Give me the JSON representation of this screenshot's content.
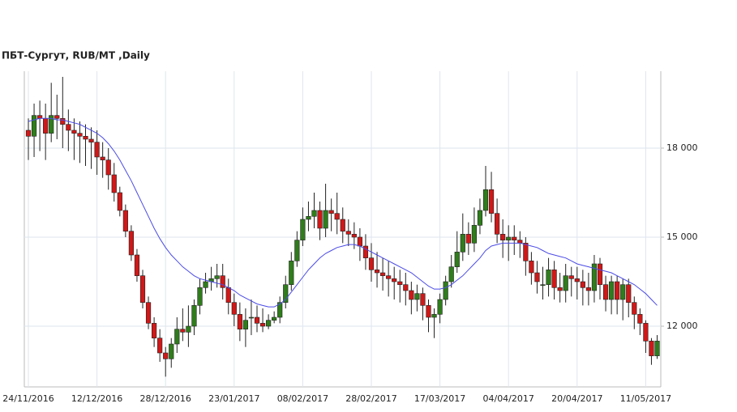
{
  "chart_data": {
    "type": "candlestick",
    "title": "ПБТ-Сургут,  RUB/MT ,Daily",
    "categories": [
      "24/11/2016",
      null,
      null,
      null,
      null,
      null,
      null,
      null,
      null,
      null,
      null,
      null,
      "12/12/2016",
      null,
      null,
      null,
      null,
      null,
      null,
      null,
      null,
      null,
      null,
      null,
      "28/12/2016",
      null,
      null,
      null,
      null,
      null,
      null,
      null,
      null,
      null,
      null,
      null,
      "23/01/2017",
      null,
      null,
      null,
      null,
      null,
      null,
      null,
      null,
      null,
      null,
      null,
      "08/02/2017",
      null,
      null,
      null,
      null,
      null,
      null,
      null,
      null,
      null,
      null,
      null,
      "28/02/2017",
      null,
      null,
      null,
      null,
      null,
      null,
      null,
      null,
      null,
      null,
      null,
      "17/03/2017",
      null,
      null,
      null,
      null,
      null,
      null,
      null,
      null,
      null,
      null,
      null,
      "04/04/2017",
      null,
      null,
      null,
      null,
      null,
      null,
      null,
      null,
      null,
      null,
      null,
      "20/04/2017",
      null,
      null,
      null,
      null,
      null,
      null,
      null,
      null,
      null,
      null,
      null,
      "11/05/2017",
      null,
      null
    ],
    "open": [
      18600,
      18400,
      19100,
      19000,
      18500,
      19100,
      19000,
      18800,
      18600,
      18500,
      18400,
      18300,
      18200,
      17700,
      17600,
      17100,
      16500,
      15900,
      15200,
      14400,
      13700,
      12800,
      12100,
      11600,
      11100,
      10900,
      11400,
      11900,
      11800,
      12000,
      12700,
      13300,
      13500,
      13600,
      13700,
      13300,
      12800,
      12400,
      11900,
      12300,
      12300,
      12100,
      12000,
      12200,
      12300,
      12800,
      13400,
      14200,
      14900,
      15600,
      15700,
      15900,
      15300,
      15900,
      15800,
      15600,
      15200,
      15100,
      15000,
      14700,
      14300,
      13900,
      13800,
      13700,
      13600,
      13500,
      13400,
      13200,
      12900,
      13100,
      12700,
      12300,
      12400,
      12900,
      13500,
      14000,
      14500,
      15100,
      14800,
      15400,
      15900,
      16600,
      15800,
      15100,
      14900,
      15000,
      14900,
      14800,
      14200,
      13800,
      13400,
      13400,
      13900,
      13300,
      13200,
      13700,
      13600,
      13500,
      13300,
      13200,
      14100,
      13400,
      12900,
      13500,
      12900,
      13400,
      12800,
      12400,
      12100,
      11500,
      11000
    ],
    "high": [
      19000,
      19500,
      19600,
      19500,
      20200,
      19800,
      20400,
      19300,
      19000,
      18900,
      18800,
      18700,
      18600,
      18200,
      18000,
      17500,
      16700,
      16100,
      15400,
      14600,
      13900,
      13000,
      12300,
      11900,
      11300,
      11600,
      12300,
      12600,
      12700,
      12900,
      13600,
      13800,
      14000,
      14100,
      14100,
      13600,
      13100,
      12800,
      12600,
      12900,
      12700,
      12600,
      12400,
      12500,
      13000,
      13700,
      14500,
      15200,
      16000,
      16200,
      16500,
      16200,
      16800,
      16300,
      16500,
      16000,
      15600,
      15500,
      15300,
      15100,
      14800,
      14500,
      14300,
      14200,
      14000,
      13900,
      13800,
      13500,
      13400,
      13300,
      12900,
      12600,
      13100,
      13700,
      14400,
      15200,
      15800,
      15500,
      16000,
      16300,
      17400,
      17200,
      16300,
      15600,
      15400,
      15400,
      15200,
      15000,
      14500,
      14200,
      14000,
      14300,
      14200,
      13800,
      14100,
      14000,
      14000,
      13900,
      13800,
      14400,
      14300,
      13700,
      13700,
      13700,
      13600,
      13600,
      13000,
      12600,
      12200,
      11600,
      11700
    ],
    "low": [
      17600,
      17700,
      17900,
      17600,
      18200,
      18300,
      18000,
      17900,
      17600,
      17500,
      17400,
      17300,
      17100,
      17000,
      16600,
      16200,
      15700,
      15000,
      14200,
      13500,
      12600,
      11900,
      11300,
      10800,
      10300,
      10600,
      11100,
      11500,
      11300,
      11700,
      12400,
      13100,
      13200,
      13300,
      12900,
      12400,
      12000,
      11500,
      11300,
      11700,
      11800,
      11800,
      11900,
      12100,
      12100,
      12600,
      13200,
      14000,
      14700,
      15200,
      15300,
      14900,
      15000,
      15200,
      15100,
      14800,
      14700,
      14600,
      14200,
      13900,
      13500,
      13300,
      13200,
      13000,
      12900,
      12800,
      12700,
      12400,
      12500,
      12200,
      11800,
      11600,
      12100,
      12700,
      13300,
      13800,
      14200,
      14400,
      14500,
      15100,
      15700,
      15500,
      14800,
      14300,
      14200,
      14400,
      14300,
      13700,
      13400,
      13100,
      12900,
      13000,
      12900,
      12800,
      12800,
      13000,
      12900,
      12700,
      12700,
      12800,
      12900,
      12500,
      12400,
      12400,
      12200,
      12300,
      11900,
      11700,
      11100,
      10700,
      10900
    ],
    "close": [
      18400,
      19100,
      19000,
      18500,
      19100,
      19000,
      18800,
      18600,
      18500,
      18400,
      18300,
      18200,
      17700,
      17600,
      17100,
      16500,
      15900,
      15200,
      14400,
      13700,
      12800,
      12100,
      11600,
      11100,
      10900,
      11400,
      11900,
      11800,
      12000,
      12700,
      13300,
      13500,
      13600,
      13700,
      13300,
      12800,
      12400,
      11900,
      12200,
      12300,
      12100,
      12000,
      12200,
      12300,
      12800,
      13400,
      14200,
      14900,
      15600,
      15700,
      15900,
      15300,
      15900,
      15800,
      15600,
      15200,
      15100,
      15000,
      14700,
      14300,
      13900,
      13800,
      13700,
      13600,
      13500,
      13400,
      13200,
      12900,
      13100,
      12700,
      12300,
      12400,
      12900,
      13500,
      14000,
      14500,
      15100,
      14800,
      15400,
      15900,
      16600,
      15800,
      15100,
      14900,
      15000,
      14900,
      14800,
      14200,
      13800,
      13500,
      13400,
      13900,
      13300,
      13200,
      13700,
      13600,
      13500,
      13300,
      13200,
      14100,
      13400,
      12900,
      13500,
      12900,
      13400,
      12800,
      12400,
      12100,
      11500,
      11000,
      11500
    ],
    "moving_average": {
      "color": "#4b4be6",
      "values": [
        18900,
        18950,
        19000,
        19000,
        19000,
        18950,
        18950,
        18900,
        18850,
        18800,
        18700,
        18600,
        18500,
        18350,
        18150,
        17900,
        17600,
        17250,
        16900,
        16500,
        16100,
        15700,
        15300,
        14950,
        14650,
        14400,
        14200,
        14000,
        13850,
        13700,
        13600,
        13550,
        13500,
        13450,
        13400,
        13300,
        13200,
        13050,
        12950,
        12850,
        12750,
        12700,
        12650,
        12650,
        12750,
        12900,
        13150,
        13400,
        13650,
        13900,
        14100,
        14300,
        14450,
        14550,
        14650,
        14700,
        14750,
        14750,
        14700,
        14600,
        14500,
        14400,
        14300,
        14200,
        14100,
        14000,
        13900,
        13800,
        13650,
        13500,
        13350,
        13250,
        13250,
        13300,
        13400,
        13550,
        13700,
        13900,
        14100,
        14300,
        14550,
        14700,
        14750,
        14800,
        14800,
        14800,
        14800,
        14750,
        14700,
        14650,
        14550,
        14450,
        14400,
        14350,
        14300,
        14200,
        14100,
        14050,
        14000,
        13950,
        13900,
        13850,
        13800,
        13700,
        13600,
        13500,
        13400,
        13250,
        13100,
        12900,
        12700
      ]
    },
    "up_color": "#2f7d1b",
    "down_color": "#d01818",
    "ylim": [
      9955,
      20590
    ],
    "yticks": [
      {
        "value": 12000,
        "label": "12 000"
      },
      {
        "value": 15000,
        "label": "15 000"
      },
      {
        "value": 18000,
        "label": "18 000"
      }
    ],
    "grid": true
  }
}
